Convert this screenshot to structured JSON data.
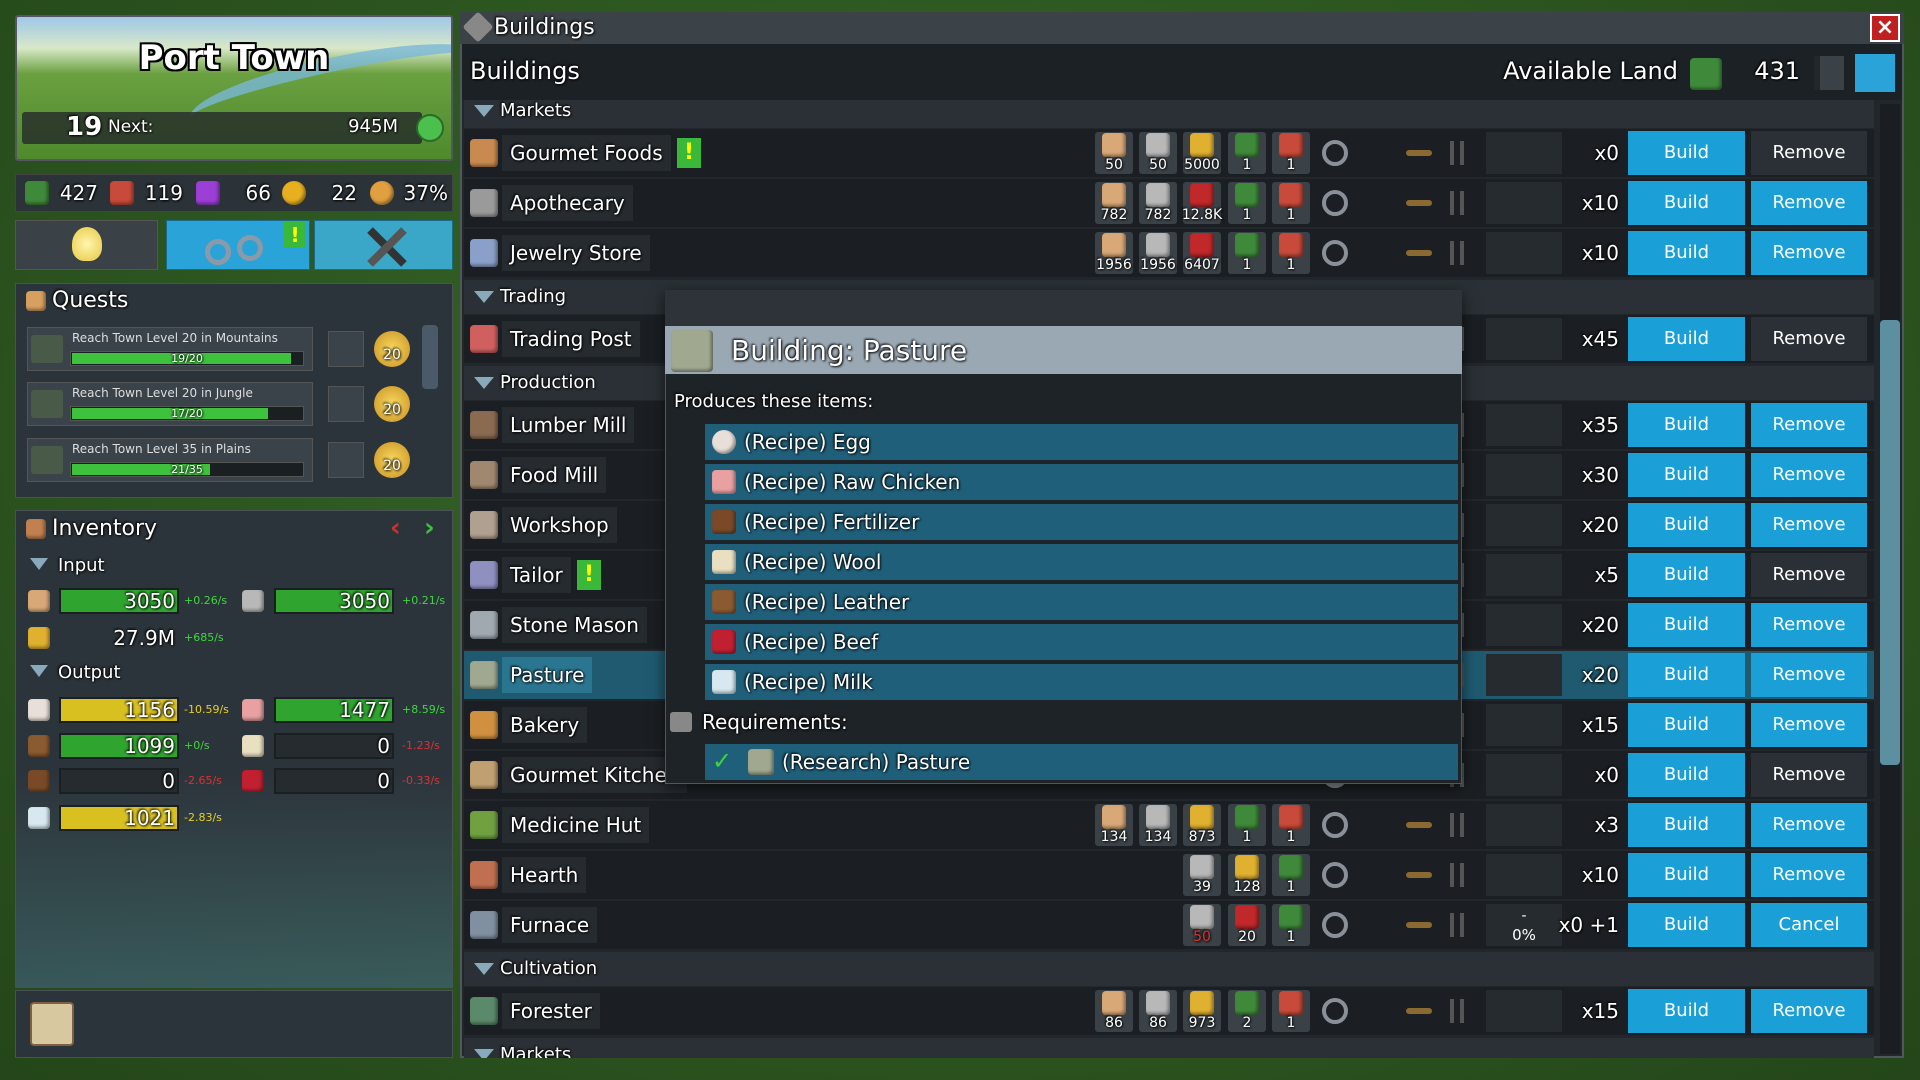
{
  "town": {
    "name": "Port Town",
    "level": "19",
    "next_label": "Next:",
    "next_value": "945M"
  },
  "stats": [
    {
      "value": "427",
      "color": "#3f8a3a"
    },
    {
      "value": "119",
      "color": "#c84a3a"
    },
    {
      "value": "66",
      "color": "#9b3fd6"
    },
    {
      "value": "22",
      "color": "#e8b020"
    },
    {
      "value": "37%",
      "color": "#e0a040"
    }
  ],
  "actions": {
    "alert": "!"
  },
  "quests": {
    "title": "Quests",
    "items": [
      {
        "text": "Reach Town Level 20 in Mountains",
        "current": 19,
        "target": 20,
        "label": "19/20",
        "reward": "20"
      },
      {
        "text": "Reach Town Level 20 in Jungle",
        "current": 17,
        "target": 20,
        "label": "17/20",
        "reward": "20"
      },
      {
        "text": "Reach Town Level 35 in Plains",
        "current": 21,
        "target": 35,
        "label": "21/35",
        "reward": "20"
      }
    ]
  },
  "inventory": {
    "title": "Inventory",
    "input_label": "Input",
    "output_label": "Output",
    "input": [
      {
        "value": "3050",
        "rate": "+0.26/s",
        "color": "#d9a877",
        "bar": "#2fa52f",
        "rate_color": "#3fd63f"
      },
      {
        "value": "3050",
        "rate": "+0.21/s",
        "color": "#b8b8b8",
        "bar": "#2fa52f",
        "rate_color": "#3fd63f"
      },
      {
        "value": "27.9M",
        "rate": "+685/s",
        "color": "#e0b030",
        "rate_color": "#3fd63f"
      }
    ],
    "output": [
      {
        "value": "1156",
        "rate": "-10.59/s",
        "color": "#e8e0d8",
        "bar": "#d8c020",
        "rate_color": "#e8d020"
      },
      {
        "value": "1477",
        "rate": "+8.59/s",
        "color": "#e8a0a0",
        "bar": "#2fa52f",
        "rate_color": "#3fd63f"
      },
      {
        "value": "1099",
        "rate": "+0/s",
        "color": "#8a5a30",
        "bar": "#2fa52f",
        "rate_color": "#3fd63f"
      },
      {
        "value": "0",
        "rate": "-1.23/s",
        "color": "#e8e0c0",
        "bar": "#262b2f",
        "rate_color": "#e03030"
      },
      {
        "value": "0",
        "rate": "-2.65/s",
        "color": "#7a4a28",
        "bar": "#262b2f",
        "rate_color": "#e03030"
      },
      {
        "value": "0",
        "rate": "-0.33/s",
        "color": "#c02030",
        "bar": "#262b2f",
        "rate_color": "#e03030"
      },
      {
        "value": "1021",
        "rate": "-2.83/s",
        "color": "#d8e8f0",
        "bar": "#d8c020",
        "rate_color": "#e8d020"
      }
    ]
  },
  "window": {
    "title": "Buildings",
    "header": "Buildings",
    "land_label": "Available Land",
    "land_value": "431"
  },
  "sections": [
    {
      "label": "Markets",
      "buildings": [
        {
          "name": "Gourmet Foods",
          "alert": "!",
          "color": "#c88a50",
          "costs": [
            {
              "value": "50",
              "color": "#d9a877"
            },
            {
              "value": "50",
              "color": "#b8b8b8"
            },
            {
              "value": "5000",
              "color": "#e0b030"
            },
            {
              "value": "1",
              "color": "#3f8a3a"
            },
            {
              "value": "1",
              "color": "#c84a3a"
            }
          ],
          "count": "x0",
          "build": "Build",
          "remove": "Remove",
          "remove_enabled": false
        },
        {
          "name": "Apothecary",
          "color": "#9a9a9a",
          "costs": [
            {
              "value": "782",
              "color": "#d9a877"
            },
            {
              "value": "782",
              "color": "#b8b8b8"
            },
            {
              "value": "12.8K",
              "color": "#c0282a"
            },
            {
              "value": "1",
              "color": "#3f8a3a"
            },
            {
              "value": "1",
              "color": "#c84a3a"
            }
          ],
          "count": "x10",
          "build": "Build",
          "remove": "Remove",
          "remove_enabled": true
        },
        {
          "name": "Jewelry Store",
          "color": "#8aa0c8",
          "costs": [
            {
              "value": "1956",
              "color": "#d9a877"
            },
            {
              "value": "1956",
              "color": "#b8b8b8"
            },
            {
              "value": "6407",
              "color": "#c0282a"
            },
            {
              "value": "1",
              "color": "#3f8a3a"
            },
            {
              "value": "1",
              "color": "#c84a3a"
            }
          ],
          "count": "x10",
          "build": "Build",
          "remove": "Remove",
          "remove_enabled": true
        }
      ]
    },
    {
      "label": "Trading",
      "buildings": [
        {
          "name": "Trading Post",
          "color": "#d06060",
          "count": "x45",
          "build": "Build",
          "remove": "Remove",
          "remove_enabled": false
        }
      ]
    },
    {
      "label": "Production",
      "buildings": [
        {
          "name": "Lumber Mill",
          "color": "#8a6a50",
          "count": "x35",
          "build": "Build",
          "remove": "Remove",
          "remove_enabled": true
        },
        {
          "name": "Food Mill",
          "color": "#a08870",
          "count": "x30",
          "build": "Build",
          "remove": "Remove",
          "remove_enabled": true
        },
        {
          "name": "Workshop",
          "color": "#b0a090",
          "count": "x20",
          "build": "Build",
          "remove": "Remove",
          "remove_enabled": true
        },
        {
          "name": "Tailor",
          "alert": "!",
          "color": "#9090c0",
          "count": "x5",
          "build": "Build",
          "remove": "Remove",
          "remove_enabled": false
        },
        {
          "name": "Stone Mason",
          "color": "#a0a8b0",
          "count": "x20",
          "build": "Build",
          "remove": "Remove",
          "remove_enabled": true
        },
        {
          "name": "Pasture",
          "color": "#a0a890",
          "selected": true,
          "count": "x20",
          "build": "Build",
          "remove": "Remove",
          "remove_enabled": true
        },
        {
          "name": "Bakery",
          "color": "#d09040",
          "count": "x15",
          "build": "Build",
          "remove": "Remove",
          "remove_enabled": true
        },
        {
          "name": "Gourmet Kitchen",
          "color": "#c0a070",
          "count": "x0",
          "build": "Build",
          "remove": "Remove",
          "remove_enabled": false
        },
        {
          "name": "Medicine Hut",
          "color": "#70a040",
          "costs": [
            {
              "value": "134",
              "color": "#d9a877"
            },
            {
              "value": "134",
              "color": "#b8b8b8"
            },
            {
              "value": "873",
              "color": "#e0b030"
            },
            {
              "value": "1",
              "color": "#3f8a3a"
            },
            {
              "value": "1",
              "color": "#c84a3a"
            }
          ],
          "count": "x3",
          "build": "Build",
          "remove": "Remove",
          "remove_enabled": true
        },
        {
          "name": "Hearth",
          "color": "#c07050",
          "costs": [
            {
              "value": "39",
              "color": "#b8b8b8"
            },
            {
              "value": "128",
              "color": "#e0b030"
            },
            {
              "value": "1",
              "color": "#3f8a3a"
            }
          ],
          "count": "x10",
          "build": "Build",
          "remove": "Remove",
          "remove_enabled": true
        },
        {
          "name": "Furnace",
          "color": "#8090a0",
          "costs": [
            {
              "value": "50",
              "color": "#b8b8b8",
              "text_color": "#e03030"
            },
            {
              "value": "20",
              "color": "#c0282a"
            },
            {
              "value": "1",
              "color": "#3f8a3a"
            }
          ],
          "status": [
            "-",
            "0%"
          ],
          "count": "x0 +1",
          "build": "Build",
          "remove": "Cancel",
          "remove_enabled": true
        }
      ]
    },
    {
      "label": "Cultivation",
      "buildings": [
        {
          "name": "Forester",
          "color": "#5a8a6a",
          "costs": [
            {
              "value": "86",
              "color": "#d9a877"
            },
            {
              "value": "86",
              "color": "#b8b8b8"
            },
            {
              "value": "973",
              "color": "#e0b030"
            },
            {
              "value": "2",
              "color": "#3f8a3a"
            },
            {
              "value": "1",
              "color": "#c84a3a"
            }
          ],
          "count": "x15",
          "build": "Build",
          "remove": "Remove",
          "remove_enabled": true
        }
      ]
    },
    {
      "label": "Markets",
      "buildings": []
    }
  ],
  "tooltip": {
    "title": "Building: Pasture",
    "produces_label": "Produces these items:",
    "items": [
      {
        "label": "(Recipe) Egg",
        "color": "#e8e0d8"
      },
      {
        "label": "(Recipe) Raw Chicken",
        "color": "#e8a0a0"
      },
      {
        "label": "(Recipe) Fertilizer",
        "color": "#7a4a28"
      },
      {
        "label": "(Recipe) Wool",
        "color": "#e8e0c0"
      },
      {
        "label": "(Recipe) Leather",
        "color": "#8a5a30"
      },
      {
        "label": "(Recipe) Beef",
        "color": "#c02030"
      },
      {
        "label": "(Recipe) Milk",
        "color": "#d8e8f0"
      }
    ],
    "requirements_label": "Requirements:",
    "requirements": [
      {
        "label": "(Research) Pasture",
        "color": "#a0a890"
      }
    ]
  }
}
